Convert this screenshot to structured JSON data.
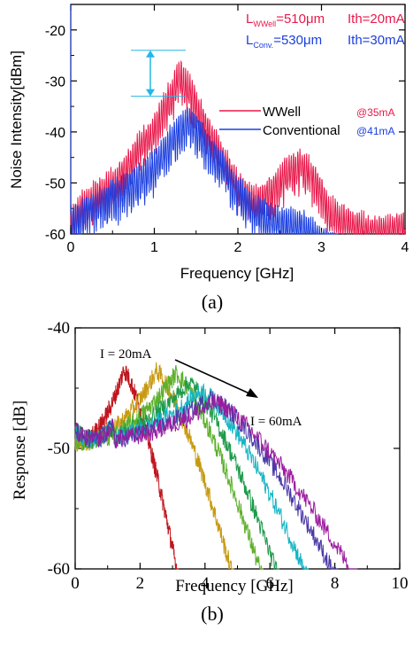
{
  "chart_data": [
    {
      "type": "line",
      "panel_label": "(a)",
      "xlabel": "Frequency [GHz]",
      "ylabel": "Noise Intensity[dBm]",
      "xlim": [
        0,
        4
      ],
      "ylim": [
        -60,
        -15
      ],
      "xticks": [
        "0",
        "1",
        "2",
        "3",
        "4"
      ],
      "yticks": [
        "-20",
        "-30",
        "-40",
        "-50",
        "-60"
      ],
      "annotations": {
        "line1_L": "L",
        "line1_sub": "WWell",
        "line1_val": "=510μm",
        "line1_ith": "Ith=20mA",
        "line2_L": "L",
        "line2_sub": "Conv.",
        "line2_val": "=530μm",
        "line2_ith": "Ith=30mA"
      },
      "legend": [
        {
          "name": "WWell",
          "note": "@35mA",
          "color": "#e8184a"
        },
        {
          "name": "Conventional",
          "note": "@41mA",
          "color": "#1a3ee0"
        }
      ],
      "arrow_between_peaks": {
        "y_from": -24,
        "y_to": -33,
        "color": "#22b7e6"
      },
      "series": [
        {
          "name": "WWell",
          "color": "#e8184a",
          "peaks": [
            {
              "x": 1.3,
              "y": -24,
              "width": 0.35
            },
            {
              "x": 2.7,
              "y": -42,
              "width": 0.35
            }
          ],
          "envelope": [
            [
              0.0,
              -54
            ],
            [
              0.2,
              -50
            ],
            [
              0.4,
              -48
            ],
            [
              0.6,
              -45
            ],
            [
              0.8,
              -40
            ],
            [
              1.0,
              -36
            ],
            [
              1.2,
              -29
            ],
            [
              1.3,
              -25
            ],
            [
              1.45,
              -29
            ],
            [
              1.6,
              -35
            ],
            [
              1.8,
              -41
            ],
            [
              2.0,
              -47
            ],
            [
              2.2,
              -50
            ],
            [
              2.4,
              -48
            ],
            [
              2.6,
              -44
            ],
            [
              2.75,
              -43
            ],
            [
              2.9,
              -45
            ],
            [
              3.1,
              -52
            ],
            [
              3.4,
              -55
            ],
            [
              3.7,
              -56
            ],
            [
              4.0,
              -55
            ]
          ]
        },
        {
          "name": "Conventional",
          "color": "#1a3ee0",
          "peaks": [
            {
              "x": 1.38,
              "y": -33,
              "width": 0.35
            }
          ],
          "envelope": [
            [
              0.0,
              -54
            ],
            [
              0.2,
              -52
            ],
            [
              0.4,
              -50
            ],
            [
              0.6,
              -48
            ],
            [
              0.8,
              -46
            ],
            [
              1.0,
              -43
            ],
            [
              1.2,
              -38
            ],
            [
              1.4,
              -34
            ],
            [
              1.6,
              -38
            ],
            [
              1.8,
              -43
            ],
            [
              2.0,
              -48
            ],
            [
              2.2,
              -52
            ],
            [
              2.5,
              -54
            ],
            [
              2.8,
              -55
            ],
            [
              3.0,
              -58
            ],
            [
              3.2,
              -60
            ]
          ]
        }
      ]
    },
    {
      "type": "line",
      "panel_label": "(b)",
      "xlabel": "Frequency [GHz]",
      "ylabel": "Response [dB]",
      "xlim": [
        0,
        10
      ],
      "ylim": [
        -60,
        -40
      ],
      "xticks": [
        "0",
        "2",
        "4",
        "6",
        "8",
        "10"
      ],
      "yticks": [
        "-40",
        "-50",
        "-60"
      ],
      "annotations": {
        "low_current": "I = 20mA",
        "high_current": "I = 60mA"
      },
      "series": [
        {
          "color": "#c0151d",
          "peak_x": 1.5,
          "peak_y": -43.5,
          "end_x": 3.2
        },
        {
          "color": "#c79a12",
          "peak_x": 2.5,
          "peak_y": -43.6,
          "end_x": 4.9
        },
        {
          "color": "#5db02b",
          "peak_x": 3.1,
          "peak_y": -43.8,
          "end_x": 5.8
        },
        {
          "color": "#1e9a4a",
          "peak_x": 3.5,
          "peak_y": -44.5,
          "end_x": 6.3
        },
        {
          "color": "#14b5c4",
          "peak_x": 3.9,
          "peak_y": -45.2,
          "end_x": 7.2
        },
        {
          "color": "#4a3aa8",
          "peak_x": 4.2,
          "peak_y": -45.8,
          "end_x": 8.1
        },
        {
          "color": "#9b1c9f",
          "peak_x": 4.3,
          "peak_y": -46.2,
          "end_x": 8.7
        }
      ]
    }
  ]
}
